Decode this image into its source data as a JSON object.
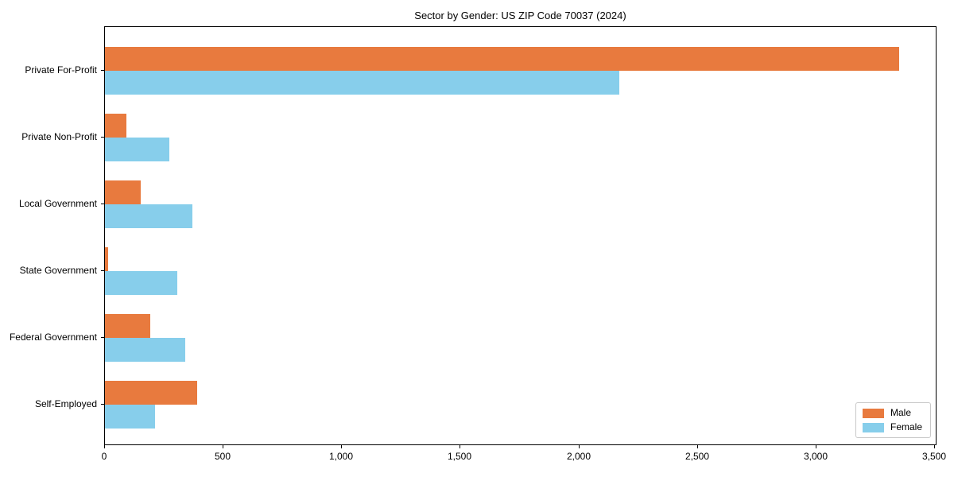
{
  "chart_data": {
    "type": "bar",
    "orientation": "horizontal",
    "title": "Sector by Gender: US ZIP Code 70037 (2024)",
    "categories": [
      "Private For-Profit",
      "Private Non-Profit",
      "Local Government",
      "State Government",
      "Federal Government",
      "Self-Employed"
    ],
    "series": [
      {
        "name": "Male",
        "color": "#e87a3e",
        "values": [
          3350,
          90,
          150,
          15,
          190,
          390
        ]
      },
      {
        "name": "Female",
        "color": "#87ceeb",
        "values": [
          2170,
          270,
          370,
          305,
          340,
          210
        ]
      }
    ],
    "xlabel": "",
    "ylabel": "",
    "xlim": [
      0,
      3500
    ],
    "xticks": [
      0,
      500,
      1000,
      1500,
      2000,
      2500,
      3000,
      3500
    ],
    "xtick_labels": [
      "0",
      "500",
      "1,000",
      "1,500",
      "2,000",
      "2,500",
      "3,000",
      "3,500"
    ],
    "grid": false,
    "legend": {
      "position": "lower right",
      "entries": [
        "Male",
        "Female"
      ]
    }
  }
}
